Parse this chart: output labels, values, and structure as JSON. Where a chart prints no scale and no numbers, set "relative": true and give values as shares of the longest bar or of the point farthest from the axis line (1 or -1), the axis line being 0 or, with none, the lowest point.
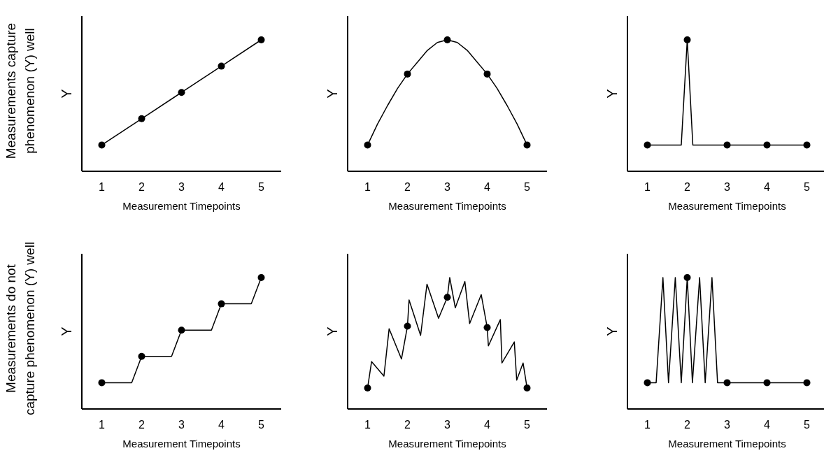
{
  "chart_data": [
    {
      "type": "line",
      "xlabel": "Measurement Timepoints",
      "ylabel": "Y",
      "relative": true,
      "xlim": [
        0.5,
        5.5
      ],
      "xticks": [
        1,
        2,
        3,
        4,
        5
      ],
      "annotations": [
        "Measurements capture phenomenon (Y) well"
      ],
      "series": [
        {
          "type": "line",
          "color": "#000000",
          "x": [
            1,
            2,
            3,
            4,
            5
          ],
          "values": [
            0.2,
            0.4,
            0.6,
            0.8,
            1
          ]
        },
        {
          "type": "scatter",
          "color": "#000000",
          "marker": "circle",
          "x": [
            1,
            2,
            3,
            4,
            5
          ],
          "values": [
            0.2,
            0.4,
            0.6,
            0.8,
            1
          ]
        }
      ]
    },
    {
      "type": "line",
      "xlabel": "Measurement Timepoints",
      "ylabel": "Y",
      "relative": true,
      "xlim": [
        0.5,
        5.5
      ],
      "xticks": [
        1,
        2,
        3,
        4,
        5
      ],
      "series": [
        {
          "type": "line",
          "color": "#000000",
          "x": [
            1,
            1.25,
            1.5,
            1.75,
            2,
            2.25,
            2.5,
            2.75,
            3,
            3.25,
            3.5,
            3.75,
            4,
            4.25,
            4.5,
            4.75,
            5
          ],
          "values": [
            0.2,
            0.36,
            0.5,
            0.63,
            0.74,
            0.83,
            0.92,
            0.98,
            1,
            0.98,
            0.92,
            0.83,
            0.74,
            0.63,
            0.5,
            0.36,
            0.2
          ]
        },
        {
          "type": "scatter",
          "color": "#000000",
          "marker": "circle",
          "x": [
            1,
            2,
            3,
            4,
            5
          ],
          "values": [
            0.2,
            0.74,
            1,
            0.74,
            0.2
          ]
        }
      ]
    },
    {
      "type": "line",
      "xlabel": "Measurement Timepoints",
      "ylabel": "Y",
      "relative": true,
      "xlim": [
        0.5,
        5.5
      ],
      "xticks": [
        1,
        2,
        3,
        4,
        5
      ],
      "series": [
        {
          "type": "line",
          "color": "#000000",
          "x": [
            1,
            1.85,
            2,
            2.14,
            5
          ],
          "values": [
            0.2,
            0.2,
            1,
            0.2,
            0.2
          ]
        },
        {
          "type": "scatter",
          "color": "#000000",
          "marker": "circle",
          "x": [
            1,
            2,
            3,
            4,
            5
          ],
          "values": [
            0.2,
            1,
            0.2,
            0.2,
            0.2
          ]
        }
      ]
    },
    {
      "type": "line",
      "xlabel": "Measurement Timepoints",
      "ylabel": "Y",
      "relative": true,
      "xlim": [
        0.5,
        5.5
      ],
      "xticks": [
        1,
        2,
        3,
        4,
        5
      ],
      "annotations": [
        "Measurements do not capture phenomenon (Y) well"
      ],
      "series": [
        {
          "type": "line",
          "color": "#000000",
          "x": [
            1,
            1.75,
            2,
            2.75,
            3,
            3.75,
            4,
            4.75,
            5
          ],
          "values": [
            0.2,
            0.2,
            0.4,
            0.4,
            0.6,
            0.6,
            0.8,
            0.8,
            1
          ]
        },
        {
          "type": "scatter",
          "color": "#000000",
          "marker": "circle",
          "x": [
            1,
            2,
            3,
            4,
            5
          ],
          "values": [
            0.2,
            0.4,
            0.6,
            0.8,
            1
          ]
        }
      ]
    },
    {
      "type": "line",
      "xlabel": "Measurement Timepoints",
      "ylabel": "Y",
      "relative": true,
      "xlim": [
        0.5,
        5.5
      ],
      "xticks": [
        1,
        2,
        3,
        4,
        5
      ],
      "series": [
        {
          "type": "line",
          "color": "#000000",
          "x": [
            1,
            1.1,
            1.41,
            1.54,
            1.85,
            2,
            2.04,
            2.33,
            2.49,
            2.78,
            3,
            3.06,
            3.2,
            3.44,
            3.56,
            3.85,
            4,
            4.03,
            4.33,
            4.37,
            4.68,
            4.74,
            4.9,
            5
          ],
          "values": [
            0.16,
            0.36,
            0.25,
            0.61,
            0.38,
            0.63,
            0.83,
            0.56,
            0.95,
            0.69,
            0.85,
            1,
            0.77,
            0.97,
            0.65,
            0.87,
            0.62,
            0.48,
            0.68,
            0.35,
            0.51,
            0.22,
            0.35,
            0.16
          ]
        },
        {
          "type": "scatter",
          "color": "#000000",
          "marker": "circle",
          "x": [
            1,
            2,
            3,
            4,
            5
          ],
          "values": [
            0.16,
            0.63,
            0.85,
            0.62,
            0.16
          ]
        }
      ]
    },
    {
      "type": "line",
      "xlabel": "Measurement Timepoints",
      "ylabel": "Y",
      "relative": true,
      "xlim": [
        0.5,
        5.5
      ],
      "xticks": [
        1,
        2,
        3,
        4,
        5
      ],
      "series": [
        {
          "type": "line",
          "color": "#000000",
          "x": [
            1,
            1.22,
            1.39,
            1.53,
            1.7,
            1.85,
            2,
            2.13,
            2.31,
            2.45,
            2.62,
            2.76,
            5
          ],
          "values": [
            0.2,
            0.2,
            1,
            0.2,
            1,
            0.2,
            1,
            0.2,
            1,
            0.2,
            1,
            0.2,
            0.2
          ]
        },
        {
          "type": "scatter",
          "color": "#000000",
          "marker": "circle",
          "x": [
            1,
            2,
            3,
            4,
            5
          ],
          "values": [
            0.2,
            1,
            0.2,
            0.2,
            0.2
          ]
        }
      ]
    }
  ]
}
